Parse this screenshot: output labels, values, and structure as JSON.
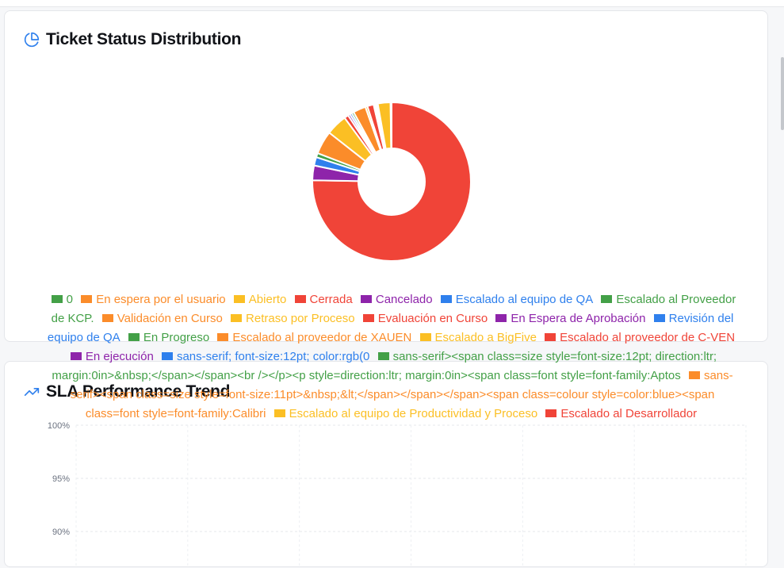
{
  "colors": {
    "green": "#43a047",
    "orange": "#fb8c2a",
    "yellow": "#fbbf24",
    "red": "#f04438",
    "purple": "#8e24aa",
    "blue": "#2f80ed",
    "accent": "#2f80ed"
  },
  "status_card": {
    "title": "Ticket Status Distribution",
    "icon": "pie-chart-icon"
  },
  "sla_card": {
    "title": "SLA Performance Trend",
    "icon": "trending-up-icon"
  },
  "chart_data": [
    {
      "type": "pie",
      "title": "Ticket Status Distribution",
      "legend_position": "bottom",
      "series": [
        {
          "label": "0",
          "color": "#43a047",
          "value": 0
        },
        {
          "label": "En espera por el usuario",
          "color": "#fb8c2a",
          "value": 0
        },
        {
          "label": "Abierto",
          "color": "#fbbf24",
          "value": 0
        },
        {
          "label": "Cerrada",
          "color": "#f04438",
          "value": 175
        },
        {
          "label": "Cancelado",
          "color": "#8e24aa",
          "value": 7
        },
        {
          "label": "Escalado al equipo de QA",
          "color": "#2f80ed",
          "value": 4
        },
        {
          "label": "Escalado al Proveedor de KCP.",
          "color": "#43a047",
          "value": 2
        },
        {
          "label": "Validación en Curso",
          "color": "#fb8c2a",
          "value": 11
        },
        {
          "label": "Retraso por Proceso",
          "color": "#fbbf24",
          "value": 10
        },
        {
          "label": "Evaluación en Curso",
          "color": "#f04438",
          "value": 2
        },
        {
          "label": "En Espera de Aprobación",
          "color": "#8e24aa",
          "value": 1
        },
        {
          "label": "Revisión del equipo de QA",
          "color": "#2f80ed",
          "value": 1
        },
        {
          "label": "En Progreso",
          "color": "#43a047",
          "value": 1
        },
        {
          "label": "Escalado al proveedor de XAUEN",
          "color": "#fb8c2a",
          "value": 6
        },
        {
          "label": "Escalado a BigFive",
          "color": "#fbbf24",
          "value": 1
        },
        {
          "label": "Escalado al proveedor de C-VEN",
          "color": "#f04438",
          "value": 3
        },
        {
          "label": "En ejecución",
          "color": "#8e24aa",
          "value": 0.5
        },
        {
          "label": "sans-serif; font-size:12pt; color:rgb(0",
          "color": "#2f80ed",
          "value": 0.5
        },
        {
          "label": "sans-serif><span class=size style=font-size:12pt; direction:ltr; margin:0in>&nbsp;</span></span><br /></p><p style=direction:ltr; margin:0in><span class=font style=font-family:Aptos",
          "color": "#43a047",
          "value": 0.5
        },
        {
          "label": "sans-serif><span class=size style=font-size:11pt>&nbsp;&lt;</span></span></span><span class=colour style=color:blue><span class=font style=font-family:Calibri",
          "color": "#fb8c2a",
          "value": 0.5
        },
        {
          "label": "Escalado al equipo de Productividad y Proceso",
          "color": "#fbbf24",
          "value": 6
        },
        {
          "label": "Escalado al Desarrollador",
          "color": "#f04438",
          "value": 0.5
        }
      ]
    },
    {
      "type": "line",
      "title": "SLA Performance Trend",
      "ylim": [
        90,
        100
      ],
      "yticks": [
        "100%",
        "95%",
        "90%"
      ],
      "grid": true,
      "series": []
    }
  ]
}
